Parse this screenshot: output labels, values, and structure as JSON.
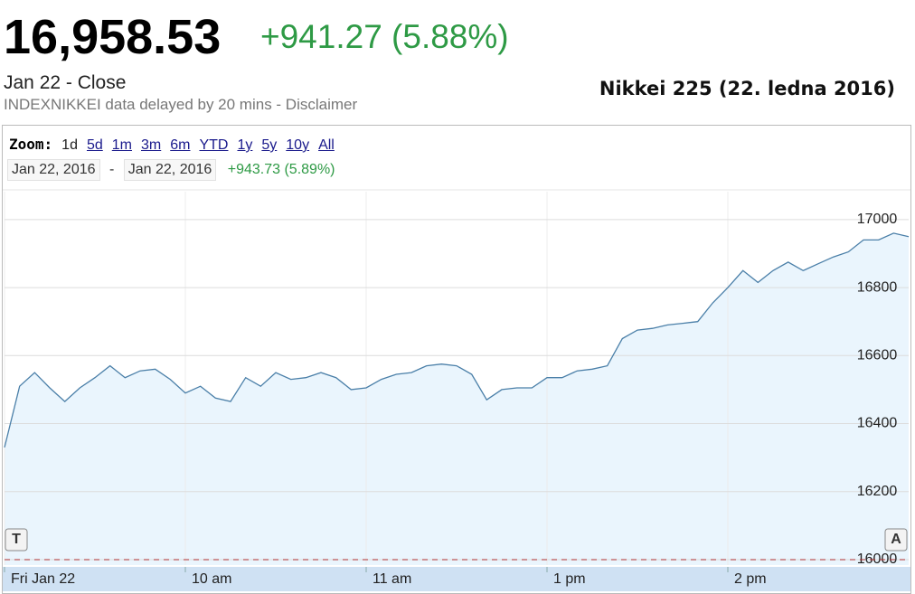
{
  "header": {
    "price": "16,958.53",
    "change": "+941.27 (5.88%)",
    "close_label": "Jan 22 - Close",
    "source": "INDEXNIKKEI data delayed by 20 mins - Disclaimer"
  },
  "zoom": {
    "label": "Zoom:",
    "options": [
      "1d",
      "5d",
      "1m",
      "3m",
      "6m",
      "YTD",
      "1y",
      "5y",
      "10y",
      "All"
    ]
  },
  "range": {
    "from": "Jan 22, 2016",
    "separator": "-",
    "to": "Jan 22, 2016",
    "change": "+943.73 (5.89%)"
  },
  "buttons": {
    "left": "T",
    "right": "A"
  },
  "chart_data": {
    "type": "area",
    "title": "Nikkei 225 (22. ledna 2016)",
    "color": "#4a7fa8",
    "fill": "#eaf5fd",
    "values": [
      16330,
      16510,
      16550,
      16505,
      16465,
      16505,
      16535,
      16570,
      16535,
      16555,
      16560,
      16530,
      16490,
      16510,
      16475,
      16465,
      16535,
      16510,
      16550,
      16530,
      16535,
      16550,
      16535,
      16500,
      16505,
      16530,
      16545,
      16550,
      16570,
      16575,
      16570,
      16545,
      16470,
      16500,
      16505,
      16505,
      16535,
      16535,
      16555,
      16560,
      16570,
      16650,
      16675,
      16680,
      16690,
      16695,
      16700,
      16755,
      16800,
      16850,
      16815,
      16850,
      16875,
      16850,
      16870,
      16890,
      16905,
      16940,
      16940,
      16960,
      16950
    ],
    "xlim": [
      0,
      60
    ],
    "xticks": [
      {
        "value": 0,
        "label": "Fri Jan 22"
      },
      {
        "value": 12,
        "label": "10 am"
      },
      {
        "value": 24,
        "label": "11 am"
      },
      {
        "value": 36,
        "label": "1 pm"
      },
      {
        "value": 48,
        "label": "2 pm"
      }
    ],
    "ylim": [
      15984,
      17082
    ],
    "yticks": [
      16000,
      16200,
      16400,
      16600,
      16800,
      17000
    ],
    "grid": true
  }
}
